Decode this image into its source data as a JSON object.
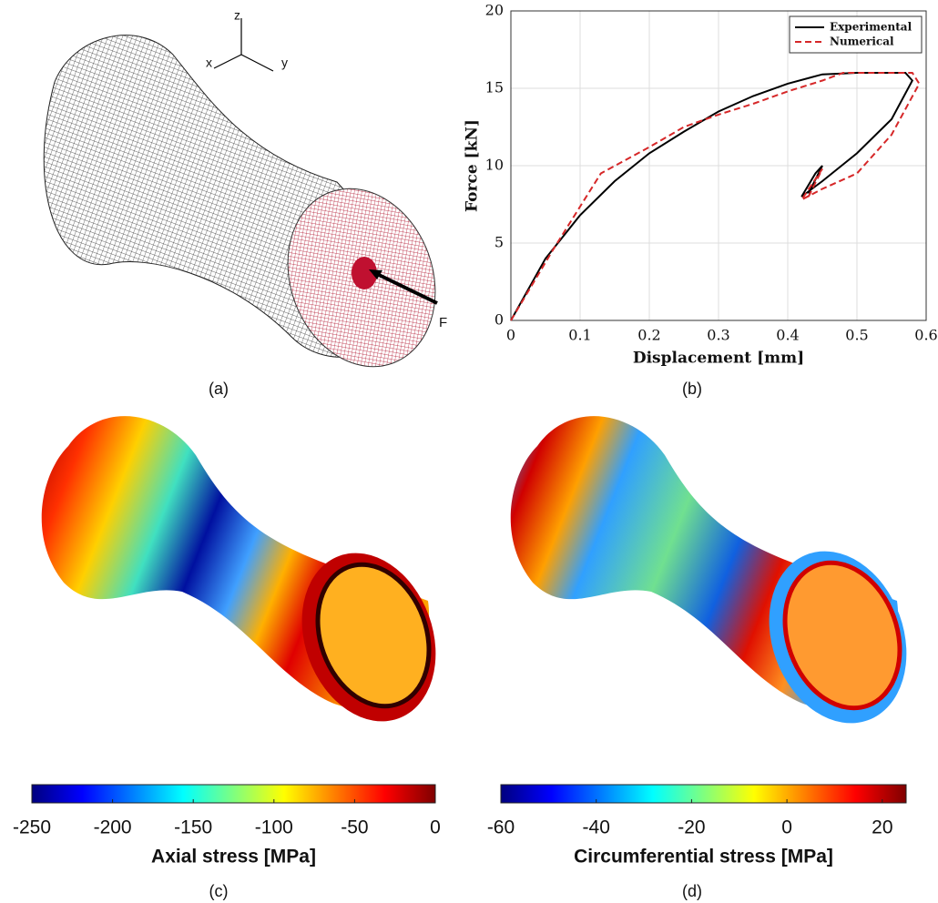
{
  "chart_data": [
    {
      "type": "line",
      "xlabel": "Displacement [mm]",
      "ylabel": "Force [kN]",
      "xlim": [
        0,
        0.6
      ],
      "xticks": [
        0,
        0.1,
        0.2,
        0.3,
        0.4,
        0.5,
        0.6
      ],
      "ylim": [
        0,
        20
      ],
      "yticks": [
        0,
        5,
        10,
        15,
        20
      ],
      "grid": true,
      "legend": "upper-right",
      "series": [
        {
          "name": "Experimental",
          "color": "#000000",
          "line_style": "solid",
          "x": [
            0,
            0.05,
            0.1,
            0.15,
            0.2,
            0.25,
            0.3,
            0.35,
            0.4,
            0.45,
            0.5,
            0.57,
            0.58,
            0.55,
            0.5,
            0.45,
            0.42,
            0.44,
            0.45,
            0.43
          ],
          "values": [
            0,
            4,
            6.8,
            9,
            10.8,
            12.2,
            13.5,
            14.5,
            15.3,
            15.9,
            16,
            16,
            15.5,
            13,
            10.8,
            9,
            8,
            9.5,
            10,
            8.2
          ]
        },
        {
          "name": "Numerical",
          "color": "#d62728",
          "line_style": "dashed",
          "x": [
            0,
            0.06,
            0.13,
            0.2,
            0.25,
            0.3,
            0.35,
            0.4,
            0.45,
            0.48,
            0.58,
            0.59,
            0.55,
            0.5,
            0.45,
            0.42,
            0.45,
            0.43
          ],
          "values": [
            0,
            4.5,
            9.5,
            11.2,
            12.5,
            13.3,
            14,
            14.8,
            15.5,
            16,
            16,
            15.3,
            12,
            9.5,
            8.5,
            7.8,
            9.8,
            8
          ]
        }
      ]
    },
    {
      "type": "colorbar",
      "colormap": "jet",
      "xlabel": "Axial stress [MPa]",
      "xlim": [
        -250,
        0
      ],
      "xticks": [
        -250,
        -200,
        -150,
        -100,
        -50,
        0
      ]
    },
    {
      "type": "colorbar",
      "colormap": "jet",
      "xlabel": "Circumferential stress [MPa]",
      "xlim": [
        -60,
        25
      ],
      "xticks": [
        -60,
        -40,
        -20,
        0,
        20
      ]
    }
  ],
  "panels": {
    "a": "(a)",
    "b": "(b)",
    "c": "(c)",
    "d": "(d)"
  },
  "mesh": {
    "axis_x": "x",
    "axis_y": "y",
    "axis_z": "z",
    "force": "F"
  }
}
